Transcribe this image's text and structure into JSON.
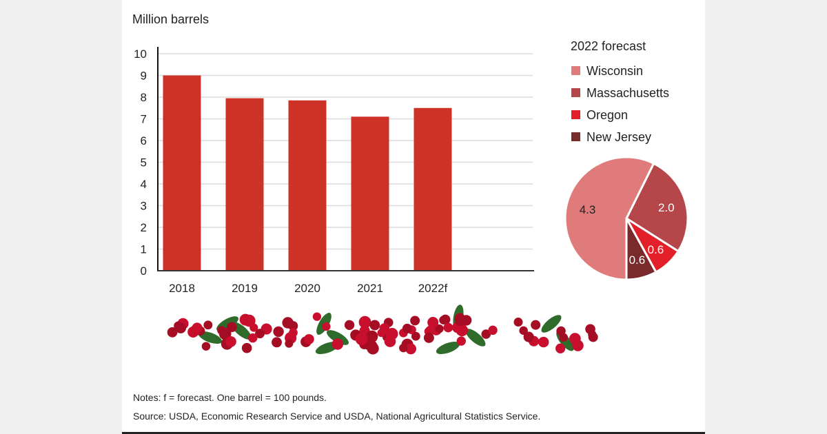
{
  "chart_data": [
    {
      "type": "bar",
      "ylabel": "Million barrels",
      "categories": [
        "2018",
        "2019",
        "2020",
        "2021",
        "2022f"
      ],
      "values": [
        9.0,
        7.95,
        7.85,
        7.1,
        7.5
      ],
      "ylim": [
        0,
        10
      ],
      "yticks": [
        "0",
        "1",
        "2",
        "3",
        "4",
        "5",
        "6",
        "7",
        "8",
        "9",
        "10"
      ],
      "grid": true,
      "color": "#cc3326"
    },
    {
      "type": "pie",
      "title": "2022 forecast",
      "legend_placement": "top",
      "slices": [
        {
          "name": "Wisconsin",
          "value": 4.3,
          "label": "4.3",
          "color": "#e07b7b"
        },
        {
          "name": "Massachusetts",
          "value": 2.0,
          "label": "2.0",
          "color": "#b5474a"
        },
        {
          "name": "Oregon",
          "value": 0.6,
          "label": "0.6",
          "color": "#e3202a"
        },
        {
          "name": "New Jersey",
          "value": 0.6,
          "label": "0.6",
          "color": "#7a2a2a"
        }
      ]
    }
  ],
  "notes": "Notes: f = forecast. One barrel = 100 pounds.",
  "source": "Source: USDA, Economic Research Service and USDA, National Agricultural Statistics Service.",
  "decoration": "cranberry-sprigs-image"
}
